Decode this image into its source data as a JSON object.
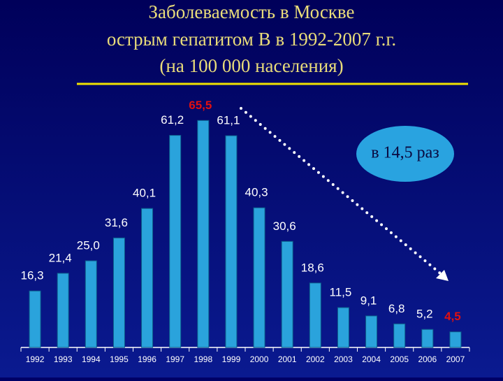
{
  "chart_data": {
    "type": "bar",
    "title_lines": [
      "Заболеваемость в Москве",
      "острым гепатитом В в 1992-2007 г.г.",
      "(на 100 000 населения)"
    ],
    "categories": [
      "1992",
      "1993",
      "1994",
      "1995",
      "1996",
      "1997",
      "1998",
      "1999",
      "2000",
      "2001",
      "2002",
      "2003",
      "2004",
      "2005",
      "2006",
      "2007"
    ],
    "values": [
      16.3,
      21.4,
      25.0,
      31.6,
      40.1,
      61.2,
      65.5,
      61.1,
      40.3,
      30.6,
      18.6,
      11.5,
      9.1,
      6.8,
      5.2,
      4.5
    ],
    "value_labels": [
      "16,3",
      "21,4",
      "25,0",
      "31,6",
      "40,1",
      "61,2",
      "65,5",
      "61,1",
      "40,3",
      "30,6",
      "18,6",
      "11,5",
      "9,1",
      "6,8",
      "5,2",
      "4,5"
    ],
    "color": "#2aa3dc",
    "highlight_indices": [
      6,
      15
    ],
    "highlight_color": "#e01010",
    "ylim": [
      0,
      70
    ],
    "annotation": "в 14,5 раз"
  }
}
